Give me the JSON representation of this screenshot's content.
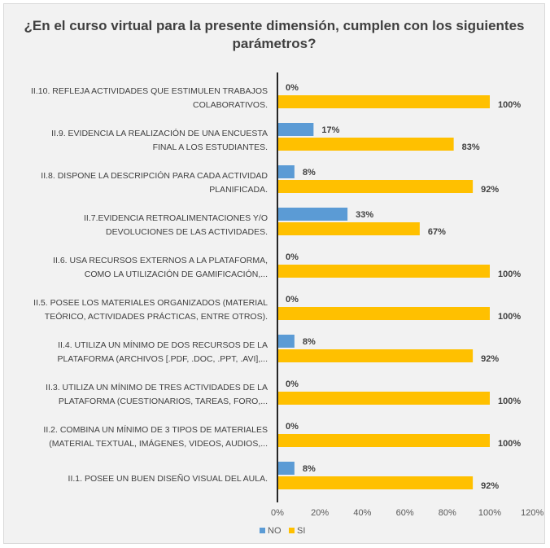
{
  "chart_data": {
    "type": "bar",
    "orientation": "horizontal",
    "title": "¿En el curso virtual para la presente dimensión, cumplen con los siguientes parámetros?",
    "categories": [
      [
        "II.10. REFLEJA ACTIVIDADES QUE ESTIMULEN TRABAJOS",
        "COLABORATIVOS."
      ],
      [
        "II.9. EVIDENCIA LA REALIZACIÓN DE UNA ENCUESTA",
        "FINAL A LOS ESTUDIANTES."
      ],
      [
        "II.8. DISPONE LA DESCRIPCIÓN PARA CADA ACTIVIDAD",
        "PLANIFICADA."
      ],
      [
        "II.7.EVIDENCIA RETROALIMENTACIONES Y/O",
        "DEVOLUCIONES DE LAS ACTIVIDADES."
      ],
      [
        "II.6. USA RECURSOS EXTERNOS A LA PLATAFORMA,",
        "COMO LA UTILIZACIÓN DE GAMIFICACIÓN,..."
      ],
      [
        "II.5. POSEE LOS MATERIALES ORGANIZADOS (MATERIAL",
        "TEÓRICO, ACTIVIDADES PRÁCTICAS, ENTRE OTROS)."
      ],
      [
        "II.4. UTILIZA UN MÍNIMO DE DOS RECURSOS DE LA",
        "PLATAFORMA (ARCHIVOS [.PDF, .DOC, .PPT, .AVI],..."
      ],
      [
        "II.3.  UTILIZA UN MÍNIMO DE TRES ACTIVIDADES DE LA",
        "PLATAFORMA (CUESTIONARIOS, TAREAS, FORO,..."
      ],
      [
        "II.2. COMBINA UN MÍNIMO DE 3 TIPOS DE MATERIALES",
        "(MATERIAL TEXTUAL, IMÁGENES, VIDEOS, AUDIOS,..."
      ],
      [
        "II.1. POSEE UN BUEN DISEÑO VISUAL DEL AULA."
      ]
    ],
    "series": [
      {
        "name": "NO",
        "color": "#5b9bd5",
        "values": [
          0,
          17,
          8,
          33,
          0,
          0,
          8,
          0,
          0,
          8
        ],
        "labels": [
          "0%",
          "17%",
          "8%",
          "33%",
          "0%",
          "0%",
          "8%",
          "0%",
          "0%",
          "8%"
        ]
      },
      {
        "name": "SI",
        "color": "#ffc000",
        "values": [
          100,
          83,
          92,
          67,
          100,
          100,
          92,
          100,
          100,
          92
        ],
        "labels": [
          "100%",
          "83%",
          "92%",
          "67%",
          "100%",
          "100%",
          "92%",
          "100%",
          "100%",
          "92%"
        ]
      }
    ],
    "xlim": [
      0,
      120
    ],
    "x_ticks": [
      "0%",
      "20%",
      "40%",
      "60%",
      "80%",
      "100%",
      "120%"
    ],
    "gridlines": false,
    "legend_position": "bottom"
  }
}
